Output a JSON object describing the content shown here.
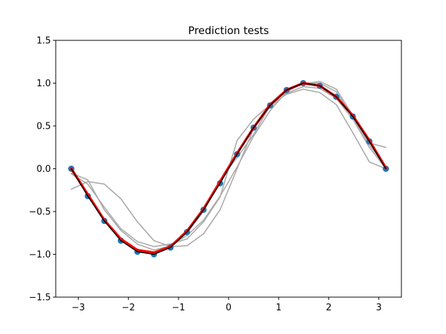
{
  "chart_data": {
    "type": "line",
    "title": "Prediction tests",
    "xlabel": "",
    "ylabel": "",
    "xlim": [
      -3.45,
      3.45
    ],
    "ylim": [
      -1.5,
      1.5
    ],
    "x_ticks": [
      -3,
      -2,
      -1,
      0,
      1,
      2,
      3
    ],
    "x_tick_labels": [
      "−3",
      "−2",
      "−1",
      "0",
      "1",
      "2",
      "3"
    ],
    "y_ticks": [
      -1.5,
      -1.0,
      -0.5,
      0.0,
      0.5,
      1.0,
      1.5
    ],
    "y_tick_labels": [
      "−1.5",
      "−1.0",
      "−0.5",
      "0.0",
      "0.5",
      "1.0",
      "1.5"
    ],
    "grid": false,
    "colors": {
      "points": "#1f77b4",
      "prediction": "#ff0000",
      "truth": "#000000",
      "tests": "#a9a9a9"
    },
    "series": [
      {
        "style": "gray-line",
        "x": [
          -3.14,
          -2.81,
          -2.48,
          -2.15,
          -1.82,
          -1.49,
          -1.16,
          -0.83,
          -0.5,
          -0.17,
          0.17,
          0.5,
          0.83,
          1.16,
          1.49,
          1.82,
          2.15,
          2.48,
          2.81,
          3.14
        ],
        "values": [
          -0.24,
          -0.15,
          -0.18,
          -0.35,
          -0.62,
          -0.84,
          -0.91,
          -0.9,
          -0.76,
          -0.48,
          0.0,
          0.47,
          0.72,
          0.88,
          0.96,
          0.94,
          0.82,
          0.58,
          0.25,
          0.0
        ]
      },
      {
        "style": "gray-line",
        "x": [
          -3.14,
          -2.81,
          -2.48,
          -2.15,
          -1.82,
          -1.49,
          -1.16,
          -0.83,
          -0.5,
          -0.17,
          0.17,
          0.5,
          0.83,
          1.16,
          1.49,
          1.82,
          2.15,
          2.48,
          2.81,
          3.14
        ],
        "values": [
          -0.05,
          -0.13,
          -0.48,
          -0.72,
          -0.88,
          -0.95,
          -0.9,
          -0.78,
          -0.6,
          -0.32,
          0.02,
          0.38,
          0.68,
          0.9,
          1.0,
          1.0,
          0.9,
          0.6,
          0.28,
          0.02
        ]
      },
      {
        "style": "gray-line",
        "x": [
          -3.14,
          -2.81,
          -2.48,
          -2.15,
          -1.82,
          -1.49,
          -1.16,
          -0.83,
          -0.5,
          -0.17,
          0.17,
          0.5,
          0.83,
          1.16,
          1.49,
          1.82,
          2.15,
          2.48,
          2.81,
          3.14
        ],
        "values": [
          -0.06,
          -0.18,
          -0.45,
          -0.7,
          -0.85,
          -0.91,
          -0.88,
          -0.82,
          -0.62,
          -0.33,
          0.33,
          0.58,
          0.75,
          0.87,
          0.93,
          0.89,
          0.75,
          0.42,
          0.08,
          0.0
        ]
      },
      {
        "style": "gray-line",
        "x": [
          -3.14,
          -2.81,
          -2.48,
          -2.15,
          -1.82,
          -1.49,
          -1.16,
          -0.83,
          -0.5,
          -0.17,
          0.17,
          0.5,
          0.83,
          1.16,
          1.49,
          1.82,
          2.15,
          2.48,
          2.81,
          3.14
        ],
        "values": [
          0.02,
          -0.3,
          -0.6,
          -0.84,
          -0.96,
          -0.99,
          -0.92,
          -0.75,
          -0.5,
          -0.13,
          0.13,
          0.4,
          0.74,
          0.92,
          0.99,
          1.02,
          0.93,
          0.62,
          0.3,
          0.25
        ]
      },
      {
        "style": "prediction",
        "x": [
          -3.14,
          -2.81,
          -2.48,
          -2.15,
          -1.82,
          -1.49,
          -1.16,
          -0.83,
          -0.5,
          -0.17,
          0.17,
          0.5,
          0.83,
          1.16,
          1.49,
          1.82,
          2.15,
          2.48,
          2.81,
          3.14
        ],
        "values": [
          0.0,
          -0.3,
          -0.6,
          -0.82,
          -0.95,
          -0.98,
          -0.91,
          -0.73,
          -0.47,
          -0.15,
          0.18,
          0.48,
          0.75,
          0.92,
          1.0,
          0.97,
          0.84,
          0.62,
          0.33,
          0.01
        ]
      },
      {
        "style": "truth",
        "x": [
          -3.14,
          -2.81,
          -2.48,
          -2.15,
          -1.82,
          -1.49,
          -1.16,
          -0.83,
          -0.5,
          -0.17,
          0.17,
          0.5,
          0.83,
          1.16,
          1.49,
          1.82,
          2.15,
          2.48,
          2.81,
          3.14
        ],
        "values": [
          0.0,
          -0.32,
          -0.61,
          -0.84,
          -0.97,
          -1.0,
          -0.92,
          -0.74,
          -0.48,
          -0.17,
          0.17,
          0.48,
          0.74,
          0.92,
          1.0,
          0.97,
          0.84,
          0.61,
          0.32,
          0.0
        ]
      }
    ],
    "points": {
      "x": [
        -3.14,
        -2.81,
        -2.48,
        -2.15,
        -1.82,
        -1.49,
        -1.16,
        -0.83,
        -0.5,
        -0.17,
        0.17,
        0.5,
        0.83,
        1.16,
        1.49,
        1.82,
        2.15,
        2.48,
        2.81,
        3.14
      ],
      "y": [
        0.0,
        -0.32,
        -0.61,
        -0.84,
        -0.97,
        -1.0,
        -0.92,
        -0.74,
        -0.48,
        -0.17,
        0.17,
        0.48,
        0.74,
        0.92,
        1.0,
        0.97,
        0.84,
        0.61,
        0.32,
        0.0
      ]
    }
  }
}
